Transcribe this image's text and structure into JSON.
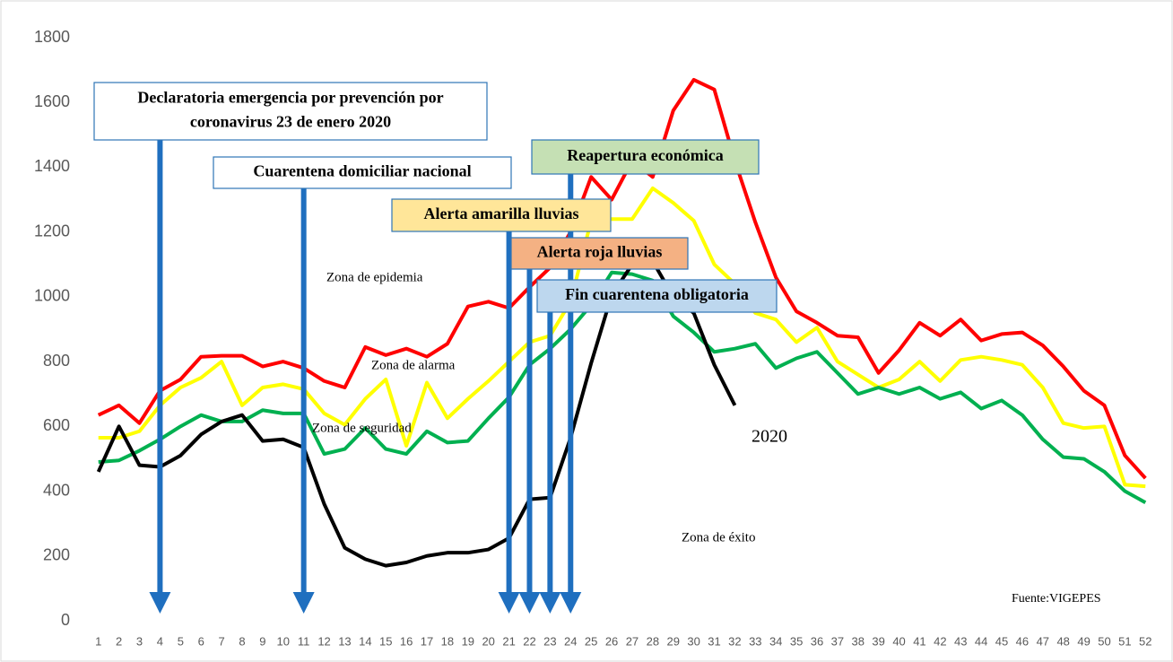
{
  "chart_data": {
    "type": "line",
    "x": [
      1,
      2,
      3,
      4,
      5,
      6,
      7,
      8,
      9,
      10,
      11,
      12,
      13,
      14,
      15,
      16,
      17,
      18,
      19,
      20,
      21,
      22,
      23,
      24,
      25,
      26,
      27,
      28,
      29,
      30,
      31,
      32,
      33,
      34,
      35,
      36,
      37,
      38,
      39,
      40,
      41,
      42,
      43,
      44,
      45,
      46,
      47,
      48,
      49,
      50,
      51,
      52
    ],
    "xlim": [
      0.4,
      52.6
    ],
    "ylim": [
      0,
      1800
    ],
    "yticks": [
      0,
      200,
      400,
      600,
      800,
      1000,
      1200,
      1400,
      1600,
      1800
    ],
    "series": [
      {
        "color": "#ff0000",
        "values": [
          635,
          665,
          610,
          710,
          745,
          815,
          818,
          818,
          785,
          800,
          780,
          740,
          720,
          845,
          820,
          840,
          815,
          855,
          970,
          985,
          965,
          1030,
          1090,
          1200,
          1370,
          1300,
          1420,
          1370,
          1575,
          1670,
          1640,
          1420,
          1230,
          1060,
          955,
          920,
          880,
          875,
          765,
          835,
          920,
          880,
          930,
          865,
          885,
          890,
          850,
          785,
          710,
          665,
          510,
          440
        ]
      },
      {
        "color": "#ffff00",
        "values": [
          565,
          565,
          585,
          665,
          720,
          750,
          800,
          665,
          720,
          730,
          715,
          640,
          605,
          685,
          745,
          540,
          735,
          625,
          685,
          740,
          800,
          860,
          880,
          985,
          1235,
          1240,
          1240,
          1335,
          1290,
          1235,
          1100,
          1040,
          950,
          930,
          860,
          905,
          800,
          760,
          720,
          745,
          800,
          740,
          805,
          815,
          805,
          790,
          720,
          610,
          595,
          600,
          420,
          415
        ]
      },
      {
        "color": "#00b050",
        "values": [
          490,
          495,
          525,
          560,
          600,
          635,
          615,
          615,
          650,
          640,
          640,
          515,
          530,
          595,
          530,
          515,
          585,
          550,
          555,
          625,
          690,
          790,
          840,
          900,
          975,
          1075,
          1070,
          1050,
          940,
          890,
          830,
          840,
          855,
          780,
          810,
          830,
          765,
          700,
          720,
          700,
          720,
          685,
          705,
          655,
          680,
          635,
          560,
          505,
          500,
          460,
          400,
          365
        ]
      },
      {
        "name": "2020",
        "color": "#000000",
        "values": [
          460,
          600,
          480,
          475,
          510,
          575,
          615,
          635,
          555,
          560,
          535,
          360,
          225,
          190,
          170,
          180,
          200,
          210,
          210,
          220,
          255,
          375,
          380,
          565,
          795,
          1005,
          1100,
          1110,
          1000,
          950,
          790,
          665,
          null,
          null,
          null,
          null,
          null,
          null,
          null,
          null,
          null,
          null,
          null,
          null,
          null,
          null,
          null,
          null,
          null,
          null,
          null,
          null
        ]
      }
    ],
    "annotations": [
      {
        "lines": [
          "Declaratoria emergencia por prevención por",
          "coronavirus 23 de enero 2020"
        ],
        "week": 4,
        "color": "#ffffff"
      },
      {
        "lines": [
          "Cuarentena domiciliar nacional"
        ],
        "week": 11,
        "color": "#ffffff"
      },
      {
        "lines": [
          "Reapertura económica"
        ],
        "week": 24,
        "color": "#c5e0b4"
      },
      {
        "lines": [
          "Alerta amarilla lluvias"
        ],
        "week": 21,
        "color": "#ffe699"
      },
      {
        "lines": [
          "Alerta roja lluvias"
        ],
        "week": 22,
        "color": "#f4b183"
      },
      {
        "lines": [
          "Fin cuarentena obligatoria"
        ],
        "week": 23,
        "color": "#bdd7ee"
      }
    ],
    "zone_labels": [
      "Zona de epidemia",
      "Zona de alarma",
      "Zona de seguridad",
      "Zona de éxito"
    ],
    "source": "Fuente:VIGEPES"
  }
}
